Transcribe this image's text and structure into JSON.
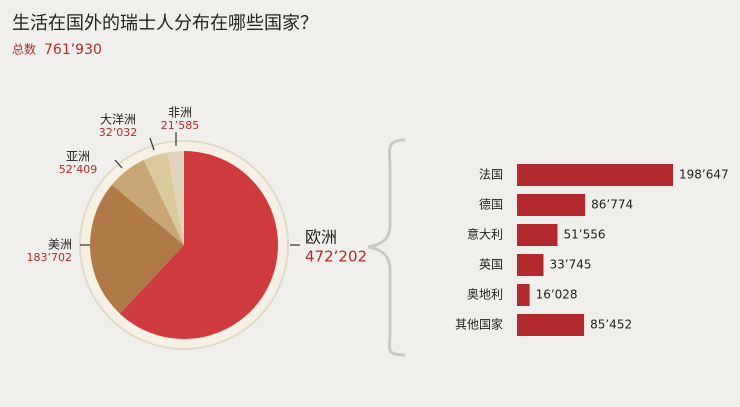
{
  "title": "生活在国外的瑞士人分布在哪些国家？",
  "total_label": "总数",
  "total": "761’930",
  "chart_data": [
    {
      "type": "pie",
      "categories": [
        "欧洲",
        "美洲",
        "亚洲",
        "大洋洲",
        "非洲"
      ],
      "values": [
        472202,
        183702,
        52409,
        32032,
        21585
      ],
      "value_labels": [
        "472’202",
        "183’702",
        "52’409",
        "32’032",
        "21’585"
      ],
      "colors": [
        "#cf3a3e",
        "#b07a48",
        "#c9a774",
        "#d9c99c",
        "#e3d4bd"
      ]
    },
    {
      "type": "bar",
      "orientation": "horizontal",
      "categories": [
        "法国",
        "德国",
        "意大利",
        "英国",
        "奥地利",
        "其他国家"
      ],
      "values": [
        198647,
        86774,
        51556,
        33745,
        16028,
        85452
      ],
      "value_labels": [
        "198’647",
        "86’774",
        "51’556",
        "33’745",
        "16’028",
        "85’452"
      ],
      "color": "#b22a2e"
    }
  ]
}
